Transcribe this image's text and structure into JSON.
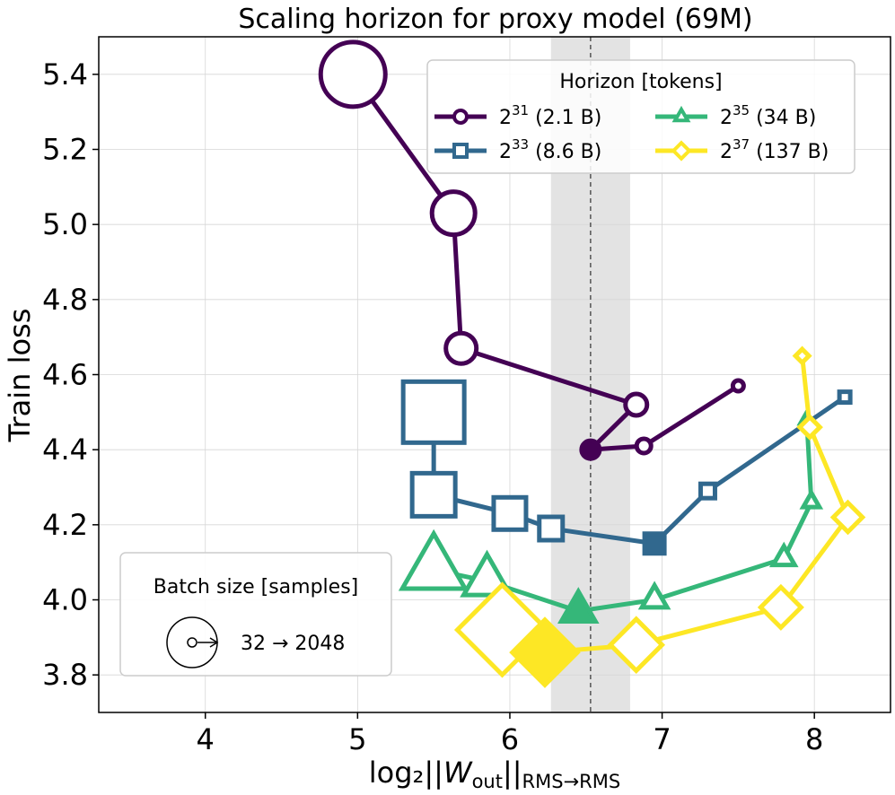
{
  "chart_data": {
    "type": "line",
    "title": "Scaling horizon for proxy model (69M)",
    "xlabel": "log₂||W_out||_RMS→RMS",
    "xlabel_parts": {
      "prefix": "log₂||",
      "var": "W",
      "sub": "out",
      "mid": "||",
      "sub2": "RMS→RMS"
    },
    "ylabel": "Train loss",
    "xlim": [
      3.3,
      8.5
    ],
    "ylim": [
      3.7,
      5.5
    ],
    "xticks": [
      "4",
      "5",
      "6",
      "7",
      "8"
    ],
    "yticks": [
      "3.8",
      "4.0",
      "4.2",
      "4.4",
      "4.6",
      "4.8",
      "5.0",
      "5.2",
      "5.4"
    ],
    "grid": true,
    "vline": {
      "x": 6.53,
      "style": "dashed",
      "band": [
        6.27,
        6.79
      ],
      "band_color": "#e3e3e3"
    },
    "legend": {
      "title": "Horizon [tokens]",
      "placement": "top-right",
      "entries": [
        {
          "base": "2",
          "exp": "31",
          "rest": " (2.1 B)"
        },
        {
          "base": "2",
          "exp": "35",
          "rest": " (34 B)"
        },
        {
          "base": "2",
          "exp": "33",
          "rest": " (8.6 B)"
        },
        {
          "base": "2",
          "exp": "37",
          "rest": " (137 B)"
        }
      ]
    },
    "size_legend": {
      "title": "Batch size [samples]",
      "label": "32 → 2048",
      "placement": "bottom-left"
    },
    "series": [
      {
        "marker": "circle",
        "color": "#440154",
        "points": [
          [
            4.97,
            5.4
          ],
          [
            5.63,
            5.03
          ],
          [
            5.68,
            4.67
          ],
          [
            6.83,
            4.52
          ],
          [
            6.53,
            4.4
          ],
          [
            6.88,
            4.41
          ],
          [
            7.5,
            4.57
          ]
        ],
        "filled_index": 4
      },
      {
        "marker": "square",
        "color": "#31688e",
        "points": [
          [
            5.5,
            4.5
          ],
          [
            5.5,
            4.28
          ],
          [
            6.0,
            4.23
          ],
          [
            6.27,
            4.19
          ],
          [
            6.95,
            4.15
          ],
          [
            7.3,
            4.29
          ],
          [
            8.2,
            4.54
          ]
        ],
        "filled_index": 4
      },
      {
        "marker": "triangle",
        "color": "#35b779",
        "points": [
          [
            5.5,
            4.08
          ],
          [
            5.85,
            4.05
          ],
          [
            6.45,
            3.97
          ],
          [
            6.95,
            4.0
          ],
          [
            7.8,
            4.11
          ],
          [
            7.98,
            4.26
          ],
          [
            7.95,
            4.48
          ]
        ],
        "filled_index": 2
      },
      {
        "marker": "diamond",
        "color": "#fde725",
        "points": [
          [
            5.95,
            3.92
          ],
          [
            6.23,
            3.86
          ],
          [
            6.83,
            3.88
          ],
          [
            7.78,
            3.98
          ],
          [
            8.22,
            4.22
          ],
          [
            7.97,
            4.46
          ],
          [
            7.92,
            4.65
          ]
        ],
        "filled_index": 1
      }
    ]
  }
}
